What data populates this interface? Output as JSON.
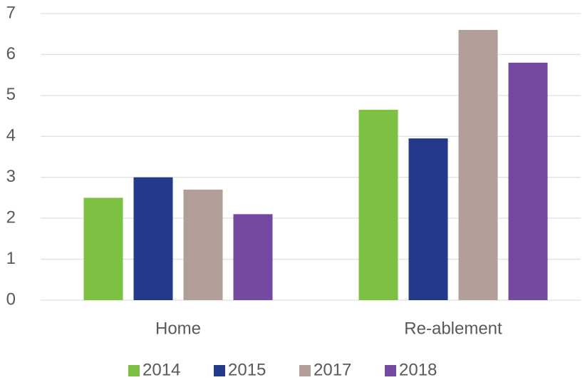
{
  "chart_data": {
    "type": "bar",
    "categories": [
      "Home",
      "Re-ablement"
    ],
    "series": [
      {
        "name": "2014",
        "color": "#7dc142",
        "values": [
          2.5,
          4.65
        ]
      },
      {
        "name": "2015",
        "color": "#233a8b",
        "values": [
          3.0,
          3.95
        ]
      },
      {
        "name": "2017",
        "color": "#b29e98",
        "values": [
          2.7,
          6.6
        ]
      },
      {
        "name": "2018",
        "color": "#7549a1",
        "values": [
          2.1,
          5.8
        ]
      }
    ],
    "ylim": [
      0,
      7
    ],
    "yticks": [
      0,
      1,
      2,
      3,
      4,
      5,
      6,
      7
    ],
    "grid": true,
    "legend": "bottom"
  }
}
